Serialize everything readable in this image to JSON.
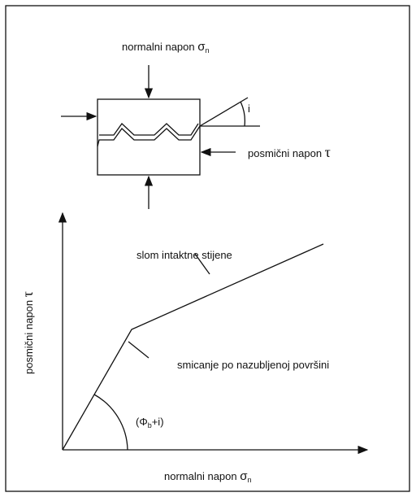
{
  "top_label": {
    "text": "normalni napon ",
    "symbol": "σ",
    "subscript": "n"
  },
  "right_label": {
    "text": "posmični napon ",
    "symbol": "τ"
  },
  "angle_label": "i",
  "y_axis_label": {
    "text": "posmični napon ",
    "symbol": "τ"
  },
  "x_axis_label": {
    "text": "normalni napon ",
    "symbol": "σ",
    "subscript": "n"
  },
  "upper_line_label": "slom intaktne stijene",
  "lower_line_label": "smicanje po nazubljenoj površini",
  "angle_arc_label": {
    "open": "(Φ",
    "subscript": "b",
    "close": "+i)"
  }
}
